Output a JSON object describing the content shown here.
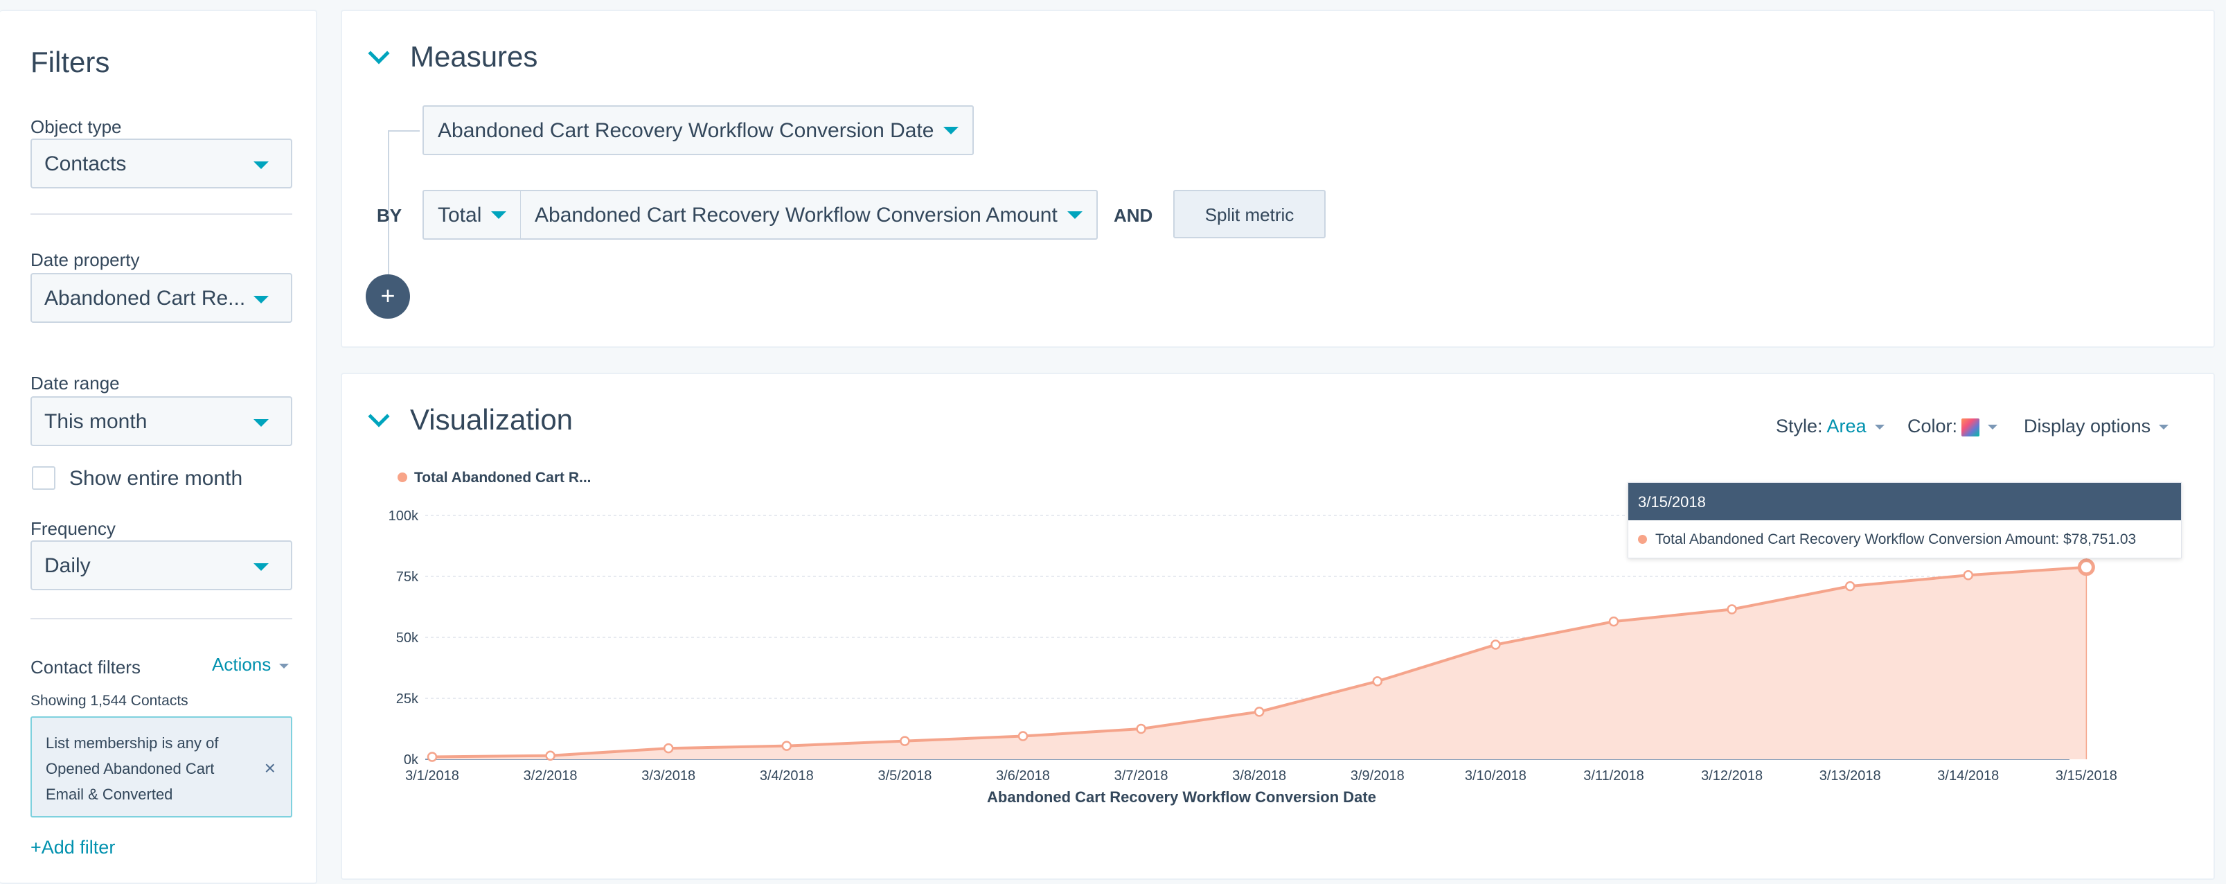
{
  "sidebar": {
    "title": "Filters",
    "object_type": {
      "label": "Object type",
      "value": "Contacts"
    },
    "date_property": {
      "label": "Date property",
      "value": "Abandoned Cart Re..."
    },
    "date_range": {
      "label": "Date range",
      "value": "This month"
    },
    "show_entire_month": {
      "label": "Show entire month",
      "checked": false
    },
    "frequency": {
      "label": "Frequency",
      "value": "Daily"
    },
    "contact_filters": {
      "label": "Contact filters",
      "actions_label": "Actions",
      "showing": "Showing 1,544 Contacts",
      "filter_line1": "List membership is any of",
      "filter_line2": "Opened Abandoned Cart",
      "filter_line3": "Email & Converted",
      "close_glyph": "×",
      "add_filter": "+Add filter"
    }
  },
  "measures": {
    "title": "Measures",
    "dimension": "Abandoned Cart Recovery Workflow Conversion Date",
    "by_label": "BY",
    "aggregation": "Total",
    "metric": "Abandoned Cart Recovery Workflow Conversion Amount",
    "and_label": "AND",
    "split_button": "Split metric",
    "add_glyph": "+"
  },
  "visualization": {
    "title": "Visualization",
    "style_label": "Style:",
    "style_value": "Area",
    "color_label": "Color:",
    "display_options": "Display options",
    "legend": "Total Abandoned Cart R...",
    "tooltip": {
      "date": "3/15/2018",
      "text": "Total Abandoned Cart Recovery Workflow Conversion Amount:",
      "value": "$78,751.03"
    }
  },
  "colors": {
    "accent": "#00a4bd",
    "series_line": "#f5a48b",
    "series_fill": "#fde1d8",
    "nav_dark": "#425b76"
  },
  "chart_data": {
    "type": "area",
    "x": [
      "3/1/2018",
      "3/2/2018",
      "3/3/2018",
      "3/4/2018",
      "3/5/2018",
      "3/6/2018",
      "3/7/2018",
      "3/8/2018",
      "3/9/2018",
      "3/10/2018",
      "3/11/2018",
      "3/12/2018",
      "3/13/2018",
      "3/14/2018",
      "3/15/2018"
    ],
    "series": [
      {
        "name": "Total Abandoned Cart Recovery Workflow Conversion Amount",
        "values": [
          1000,
          1500,
          4500,
          5500,
          7500,
          9500,
          12500,
          19500,
          32000,
          47000,
          56500,
          61500,
          71000,
          75500,
          78751.03
        ]
      }
    ],
    "xlabel": "Abandoned Cart Recovery Workflow Conversion Date",
    "ylabel": "",
    "ylim": [
      0,
      100000
    ],
    "yticks": [
      "0k",
      "25k",
      "50k",
      "75k",
      "100k"
    ],
    "grid": true
  }
}
